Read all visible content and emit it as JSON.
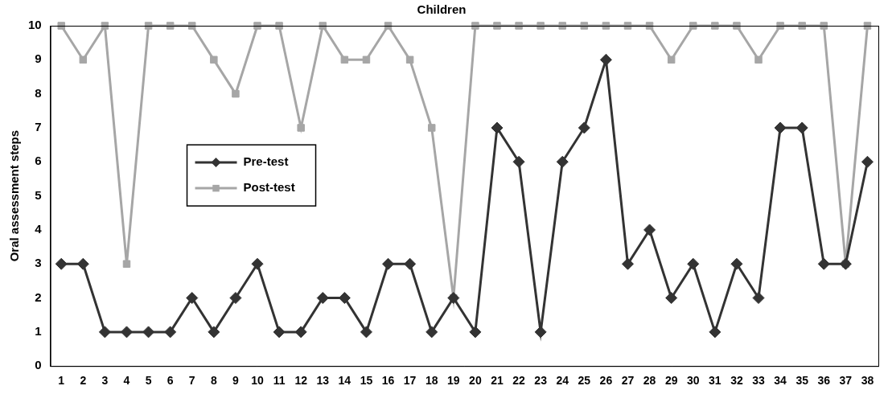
{
  "chart_data": {
    "type": "line",
    "title": "Children",
    "ylabel": "Oral assessment steps",
    "categories": [
      "1",
      "2",
      "3",
      "4",
      "5",
      "6",
      "7",
      "8",
      "9",
      "10",
      "11",
      "12",
      "13",
      "14",
      "15",
      "16",
      "17",
      "18",
      "19",
      "20",
      "21",
      "22",
      "23",
      "24",
      "25",
      "26",
      "27",
      "28",
      "29",
      "30",
      "31",
      "32",
      "33",
      "34",
      "35",
      "36",
      "37",
      "38"
    ],
    "series": [
      {
        "name": "Pre-test",
        "color": "#333333",
        "marker": "diamond",
        "values": [
          3,
          3,
          1,
          1,
          1,
          1,
          2,
          1,
          2,
          3,
          1,
          1,
          2,
          2,
          1,
          3,
          3,
          1,
          2,
          1,
          7,
          6,
          1,
          6,
          7,
          9,
          3,
          4,
          2,
          3,
          1,
          3,
          2,
          7,
          7,
          3,
          3,
          6
        ]
      },
      {
        "name": "Post-test",
        "color": "#a6a6a6",
        "marker": "square",
        "values": [
          10,
          9,
          10,
          3,
          10,
          10,
          10,
          9,
          8,
          10,
          10,
          7,
          10,
          9,
          9,
          10,
          9,
          7,
          2,
          10,
          10,
          10,
          10,
          10,
          10,
          10,
          10,
          10,
          9,
          10,
          10,
          10,
          9,
          10,
          10,
          10,
          3,
          10
        ]
      }
    ],
    "ylim": [
      0,
      10
    ],
    "yticks": [
      0,
      1,
      2,
      3,
      4,
      5,
      6,
      7,
      8,
      9,
      10
    ],
    "grid": false,
    "legend": "left"
  }
}
